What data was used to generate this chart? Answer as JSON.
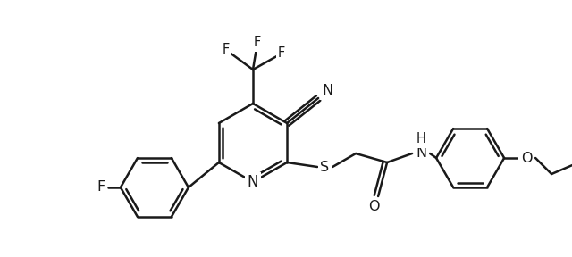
{
  "background_color": "#ffffff",
  "line_color": "#1a1a1a",
  "line_width": 1.8,
  "font_size": 10.5,
  "figsize": [
    6.4,
    2.88
  ],
  "dpi": 100,
  "xlim": [
    0,
    640
  ],
  "ylim": [
    0,
    288
  ]
}
